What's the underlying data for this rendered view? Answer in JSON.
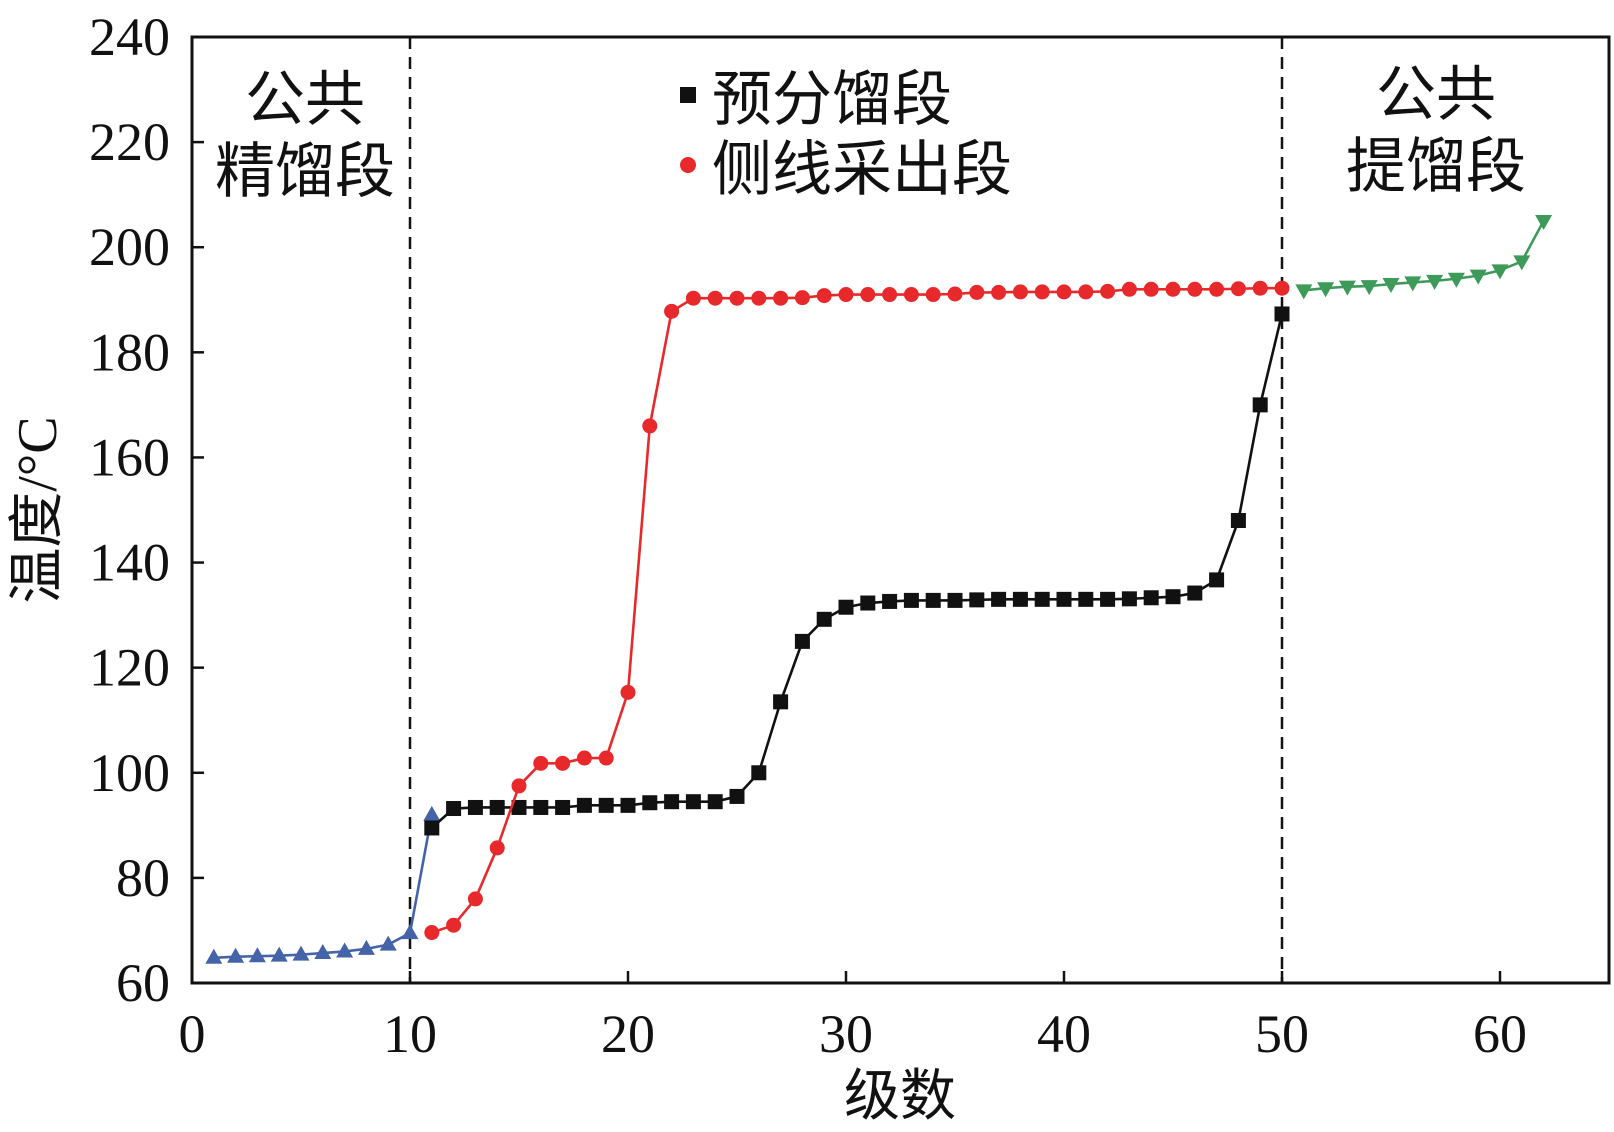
{
  "chart_data": {
    "type": "line",
    "xlabel": "级数",
    "ylabel": "温度/°C",
    "xlim": [
      0,
      65
    ],
    "ylim": [
      60,
      240
    ],
    "x_ticks": [
      0,
      10,
      20,
      30,
      40,
      50,
      60
    ],
    "y_ticks": [
      60,
      80,
      100,
      120,
      140,
      160,
      180,
      200,
      220,
      240
    ],
    "grid": false,
    "dividers": [
      10,
      50
    ],
    "annotations": [
      {
        "lines": [
          "公共",
          "精馏段"
        ]
      },
      {
        "lines": [
          "公共",
          "提馏段"
        ]
      }
    ],
    "legend": {
      "position": "top-center"
    },
    "series": [
      {
        "marker": "triangle-up",
        "color": "#4463A8",
        "x": [
          1,
          2,
          3,
          4,
          5,
          6,
          7,
          8,
          9,
          10,
          11
        ],
        "y": [
          64.8,
          65.0,
          65.1,
          65.2,
          65.4,
          65.7,
          66.0,
          66.5,
          67.3,
          69.5,
          92.0
        ]
      },
      {
        "name": "预分馏段",
        "marker": "square",
        "color": "#111111",
        "x": [
          11,
          12,
          13,
          14,
          15,
          16,
          17,
          18,
          19,
          20,
          21,
          22,
          23,
          24,
          25,
          26,
          27,
          28,
          29,
          30,
          31,
          32,
          33,
          34,
          35,
          36,
          37,
          38,
          39,
          40,
          41,
          42,
          43,
          44,
          45,
          46,
          47,
          48,
          49,
          50
        ],
        "y": [
          89.5,
          93.2,
          93.4,
          93.4,
          93.4,
          93.4,
          93.4,
          93.8,
          93.8,
          93.8,
          94.3,
          94.5,
          94.5,
          94.5,
          95.5,
          100.0,
          113.5,
          125.0,
          129.2,
          131.5,
          132.3,
          132.6,
          132.8,
          132.8,
          132.8,
          132.9,
          133.0,
          133.0,
          133.0,
          133.0,
          133.0,
          133.0,
          133.1,
          133.3,
          133.5,
          134.2,
          136.7,
          148.0,
          170.0,
          187.3
        ]
      },
      {
        "name": "侧线采出段",
        "marker": "circle",
        "color": "#E8292B",
        "x": [
          11,
          12,
          13,
          14,
          15,
          16,
          17,
          18,
          19,
          20,
          21,
          22,
          23,
          24,
          25,
          26,
          27,
          28,
          29,
          30,
          31,
          32,
          33,
          34,
          35,
          36,
          37,
          38,
          39,
          40,
          41,
          42,
          43,
          44,
          45,
          46,
          47,
          48,
          49,
          50
        ],
        "y": [
          69.6,
          71.0,
          76.0,
          85.7,
          97.5,
          101.8,
          101.8,
          102.8,
          102.8,
          115.3,
          166.0,
          187.8,
          190.3,
          190.3,
          190.3,
          190.3,
          190.3,
          190.4,
          190.8,
          191.0,
          191.0,
          191.0,
          191.0,
          191.0,
          191.1,
          191.4,
          191.4,
          191.5,
          191.5,
          191.5,
          191.5,
          191.6,
          192.0,
          192.0,
          192.0,
          192.0,
          192.0,
          192.1,
          192.2,
          192.2
        ]
      },
      {
        "marker": "triangle-down",
        "color": "#3D9A58",
        "x": [
          51,
          52,
          53,
          54,
          55,
          56,
          57,
          58,
          59,
          60,
          61,
          62
        ],
        "y": [
          191.8,
          192.2,
          192.5,
          192.6,
          193.0,
          193.3,
          193.6,
          194.0,
          194.6,
          195.6,
          197.3,
          205.0
        ]
      }
    ]
  }
}
